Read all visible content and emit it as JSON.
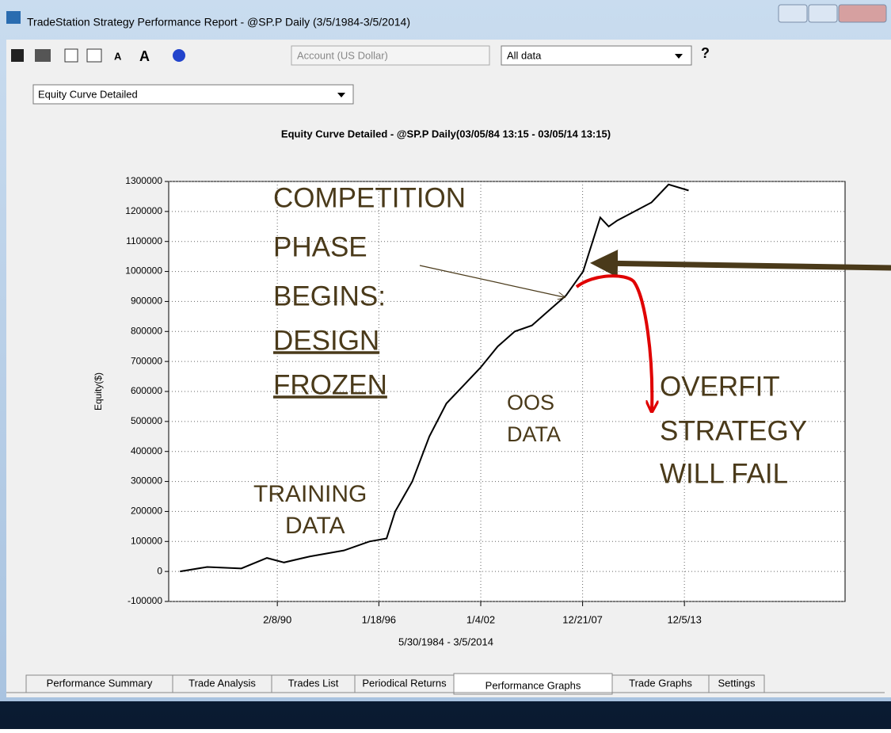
{
  "window": {
    "title": "TradeStation Strategy Performance Report - @SP.P Daily (3/5/1984-3/5/2014)"
  },
  "toolbar": {
    "account": "Account (US Dollar)",
    "range": "All data"
  },
  "view_select": "Equity Curve Detailed",
  "chart_data": {
    "type": "line",
    "title": "Equity Curve Detailed - @SP.P Daily(03/05/84 13:15 - 03/05/14 13:15)",
    "y_label": "Equity($)",
    "x_label": "5/30/1984 - 3/5/2014",
    "x": [
      "1984-05-30",
      "1986-01-01",
      "1988-01-01",
      "1989-07-01",
      "1990-07-01",
      "1992-01-01",
      "1994-01-01",
      "1995-07-01",
      "1996-07-01",
      "1997-01-01",
      "1998-01-01",
      "1999-01-01",
      "2000-01-01",
      "2001-01-01",
      "2002-01-01",
      "2003-01-01",
      "2004-01-01",
      "2005-01-01",
      "2006-01-01",
      "2007-01-01",
      "2008-01-01",
      "2009-01-01",
      "2009-07-01",
      "2010-01-01",
      "2011-01-01",
      "2012-01-01",
      "2013-01-01",
      "2014-03-05"
    ],
    "series": [
      {
        "name": "Equity",
        "color": "#000000",
        "values": [
          0,
          15000,
          10000,
          45000,
          30000,
          50000,
          70000,
          100000,
          110000,
          200000,
          300000,
          450000,
          560000,
          620000,
          680000,
          750000,
          800000,
          820000,
          870000,
          920000,
          1000000,
          1180000,
          1150000,
          1170000,
          1200000,
          1230000,
          1290000,
          1270000
        ]
      }
    ],
    "xlim": [
      "1983-10-01",
      "2023-05-01"
    ],
    "xticks": [
      {
        "value": "1990-02-08",
        "label": "2/8/90"
      },
      {
        "value": "1996-01-18",
        "label": "1/18/96"
      },
      {
        "value": "2002-01-04",
        "label": "1/4/02"
      },
      {
        "value": "2007-12-21",
        "label": "12/21/07"
      },
      {
        "value": "2013-12-05",
        "label": "12/5/13"
      }
    ],
    "ylim": [
      -100000,
      1300000
    ],
    "yticks": [
      -100000,
      0,
      100000,
      200000,
      300000,
      400000,
      500000,
      600000,
      700000,
      800000,
      900000,
      1000000,
      1100000,
      1200000,
      1300000
    ],
    "grid": true,
    "annotations": {
      "competition": [
        "COMPETITION",
        "PHASE",
        "BEGINS:"
      ],
      "frozen": [
        "DESIGN",
        "FROZEN"
      ],
      "oos": [
        "OOS",
        "DATA"
      ],
      "training": [
        "TRAINING",
        "DATA"
      ],
      "overfit": [
        "OVERFIT",
        "STRATEGY",
        "WILL FAIL"
      ]
    }
  },
  "tabs": [
    "Performance Summary",
    "Trade Analysis",
    "Trades List",
    "Periodical Returns",
    "Performance Graphs",
    "Trade Graphs",
    "Settings"
  ]
}
